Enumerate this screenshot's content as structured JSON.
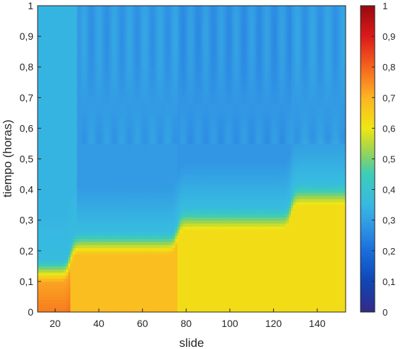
{
  "chart_data": {
    "type": "heatmap",
    "title": "",
    "xlabel": "slide",
    "ylabel": "tiempo (horas)",
    "xlim": [
      12,
      153
    ],
    "ylim": [
      0,
      1
    ],
    "x_ticks": [
      "20",
      "40",
      "60",
      "80",
      "100",
      "120",
      "140"
    ],
    "x_tick_values": [
      20,
      40,
      60,
      80,
      100,
      120,
      140
    ],
    "y_ticks": [
      "0",
      "0,1",
      "0,2",
      "0,3",
      "0,4",
      "0,5",
      "0,6",
      "0,7",
      "0,8",
      "0,9",
      "1"
    ],
    "colorbar": {
      "colormap": "parula-jet",
      "range": [
        0,
        1
      ],
      "ticks": [
        "0",
        "0,1",
        "0,2",
        "0,3",
        "0,4",
        "0,5",
        "0,6",
        "0,7",
        "0,8",
        "0,9",
        "1"
      ]
    },
    "grid": false,
    "regions": [
      {
        "x_from": 12,
        "x_to": 27,
        "boundary_y": 0.1,
        "value_below": 0.72,
        "value_above": 0.34
      },
      {
        "x_from": 27,
        "x_to": 76,
        "boundary_y": 0.19,
        "value_below": 0.68,
        "value_above": 0.29
      },
      {
        "x_from": 76,
        "x_to": 128,
        "boundary_y": 0.27,
        "value_below": 0.62,
        "value_above": 0.28
      },
      {
        "x_from": 128,
        "x_to": 153,
        "boundary_y": 0.35,
        "value_below": 0.62,
        "value_above": 0.29
      }
    ]
  }
}
